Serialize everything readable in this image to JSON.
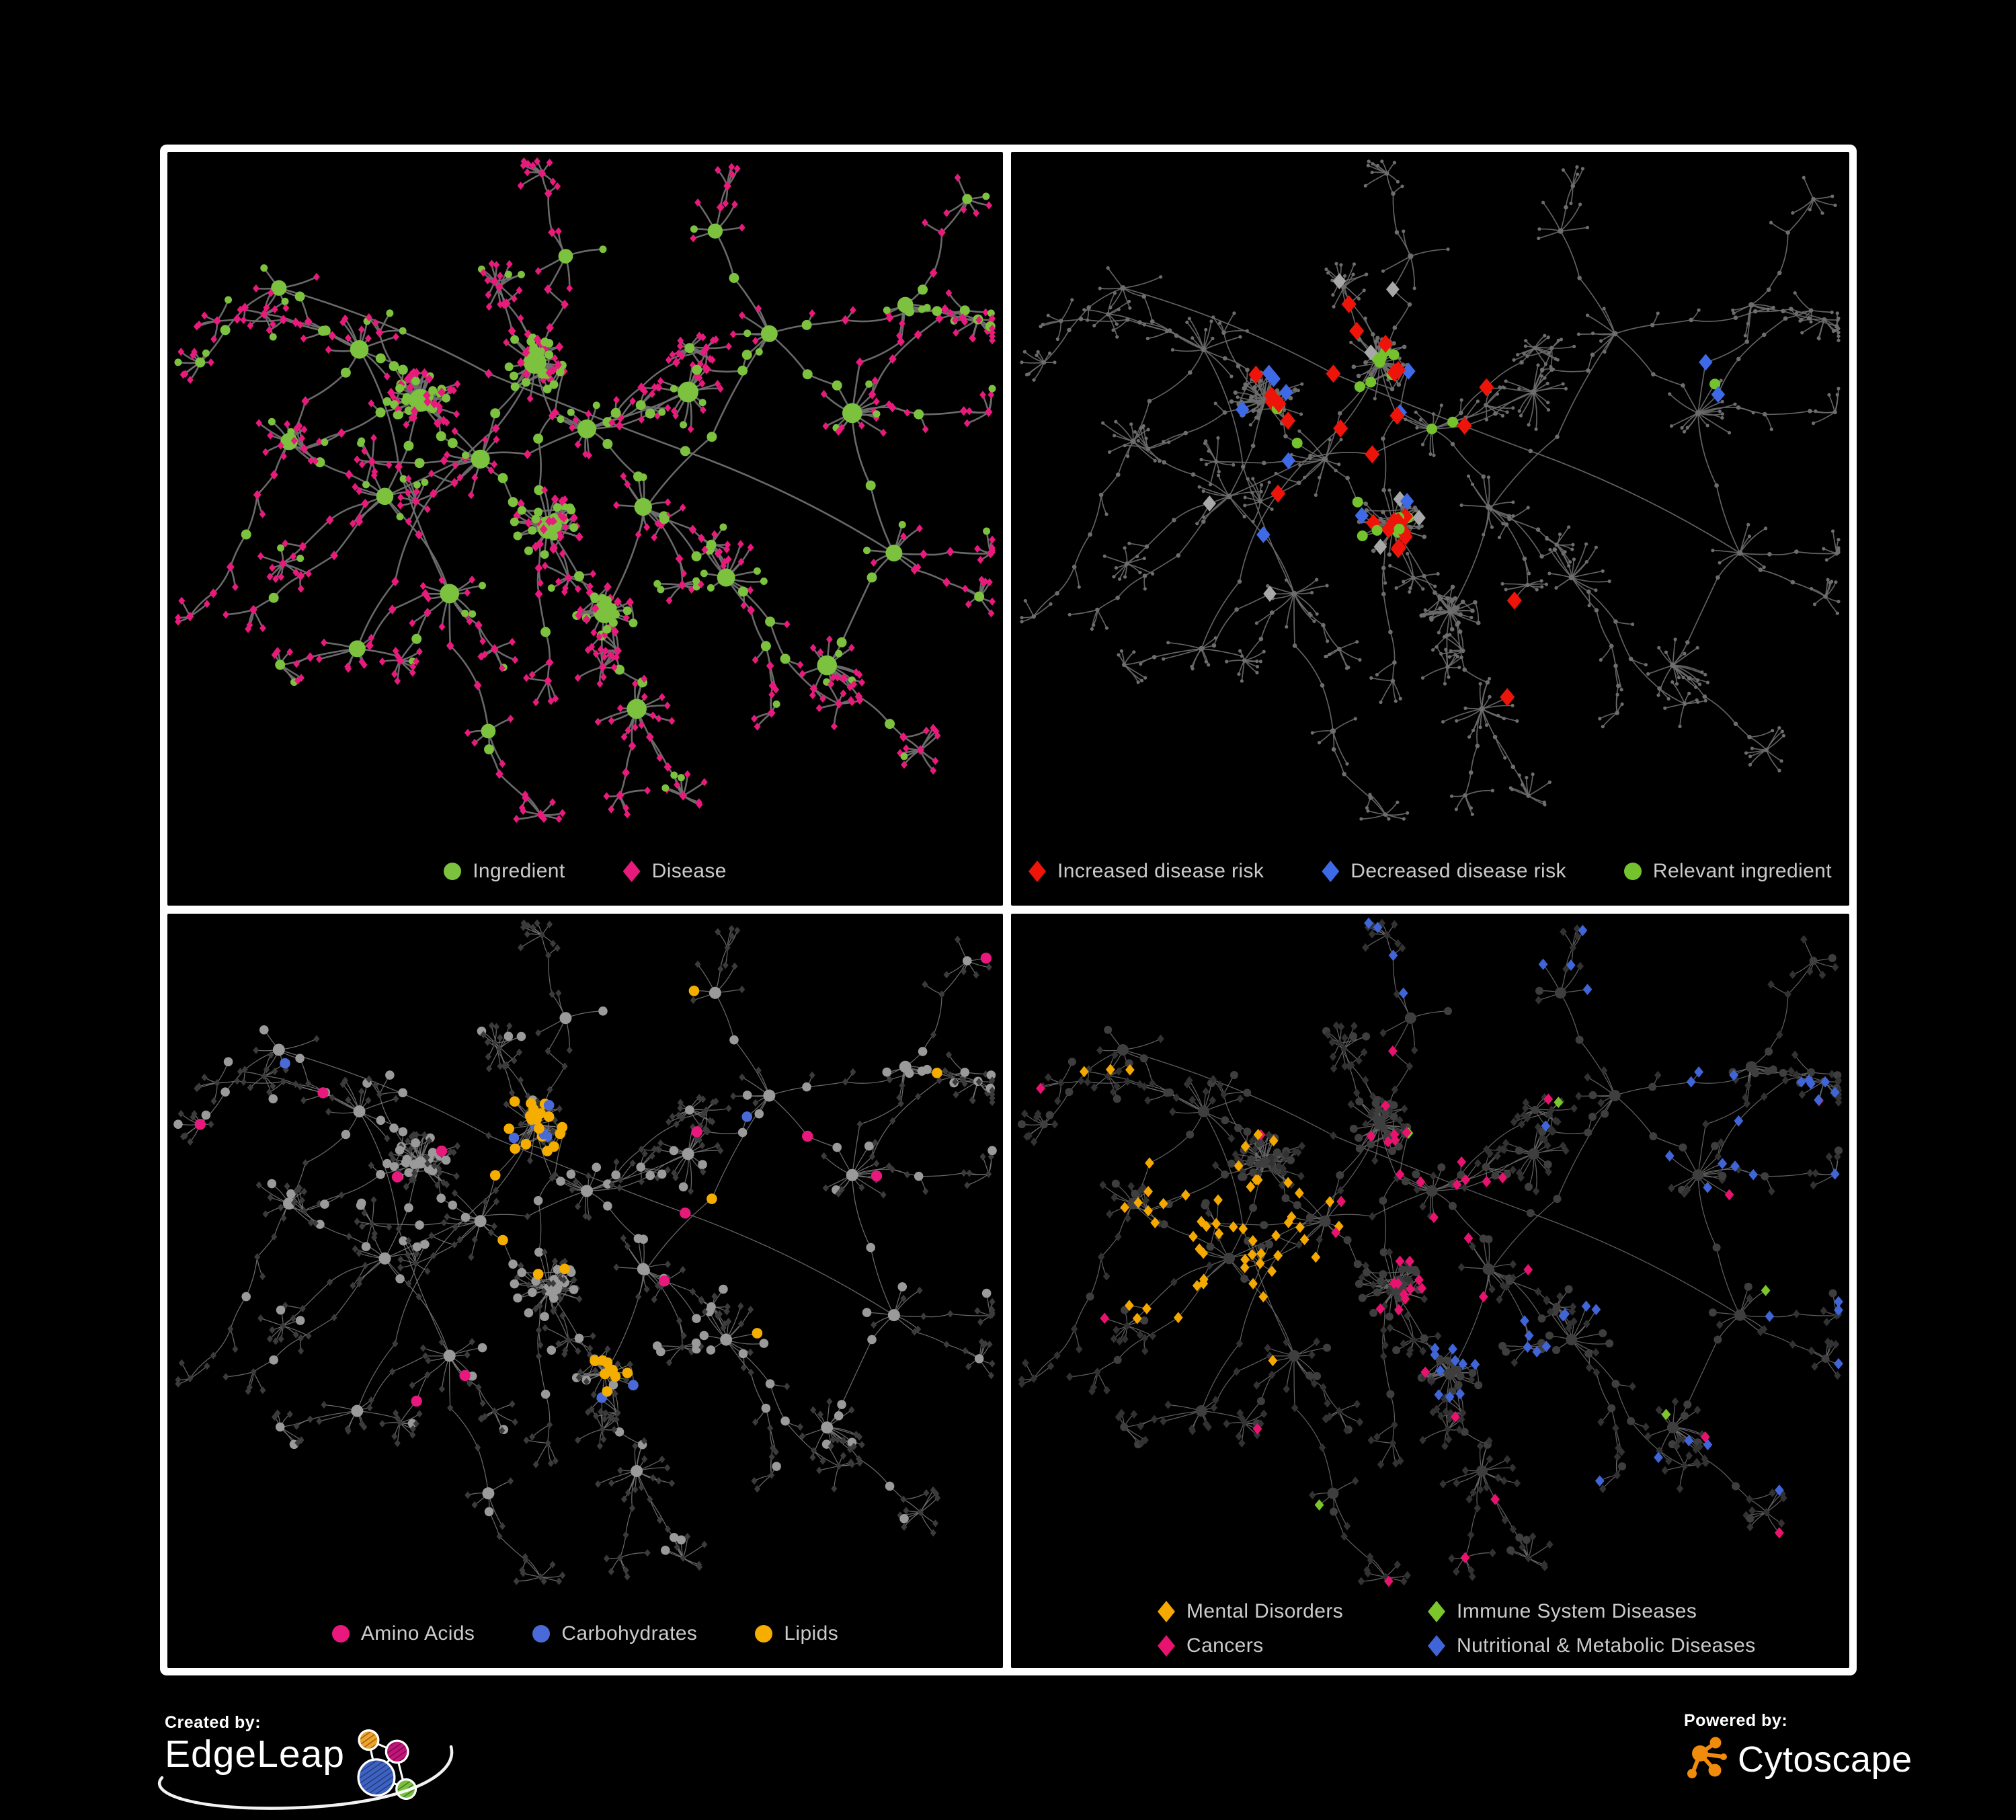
{
  "panels": [
    {
      "id": "ingredient-disease-network",
      "legend": [
        {
          "label": "Ingredient",
          "shape": "circle",
          "color": "#7cc23e"
        },
        {
          "label": "Disease",
          "shape": "diamond",
          "color": "#e81a7c"
        }
      ],
      "style": {
        "edge": "#6f6f6f",
        "circle": "#7cc23e",
        "diamond": "#e81a7c"
      }
    },
    {
      "id": "disease-risk-network",
      "legend": [
        {
          "label": "Increased disease risk",
          "shape": "diamond",
          "color": "#ee1409"
        },
        {
          "label": "Decreased disease risk",
          "shape": "diamond",
          "color": "#3e6ae8"
        },
        {
          "label": "Relevant ingredient",
          "shape": "circle",
          "color": "#74c32c"
        }
      ],
      "style": {
        "edge": "#6c6c6c",
        "base": "#6d6d6d",
        "red": "#ee1409",
        "blue": "#3e6ae8",
        "silver": "#a8a8a8",
        "green": "#74c32c"
      }
    },
    {
      "id": "nutrient-group-network",
      "legend": [
        {
          "label": "Amino Acids",
          "shape": "circle",
          "color": "#e8187c"
        },
        {
          "label": "Carbohydrates",
          "shape": "circle",
          "color": "#4a6ad8"
        },
        {
          "label": "Lipids",
          "shape": "circle",
          "color": "#f5ad00"
        }
      ],
      "style": {
        "edge": "#7b7b7b",
        "circle": "#9a9a9a",
        "diamond": "#3b3b3b",
        "pink": "#e8187c",
        "blue": "#4a6ad8",
        "yellow": "#f5ad00"
      }
    },
    {
      "id": "disease-category-network",
      "legend": [
        {
          "label": "Mental Disorders",
          "shape": "diamond",
          "color": "#f5a800"
        },
        {
          "label": "Immune System Diseases",
          "shape": "diamond",
          "color": "#7cc62c"
        },
        {
          "label": "Cancers",
          "shape": "diamond",
          "color": "#e8136f"
        },
        {
          "label": "Nutritional & Metabolic Diseases",
          "shape": "diamond",
          "color": "#4065d8"
        }
      ],
      "style": {
        "edge": "#696969",
        "circle": "#3e3e3e",
        "diamond": "#323232",
        "orange": "#f5a800",
        "green": "#7cc62c",
        "pink": "#e8136f",
        "blue": "#4065d8"
      }
    }
  ],
  "footer": {
    "created_by_label": "Created by:",
    "created_by_brand": "EdgeLeap",
    "powered_by_label": "Powered by:",
    "powered_by_brand": "Cytoscape",
    "edgeleap_logo_colors": [
      "#f0a32a",
      "#c2147a",
      "#3e62c4",
      "#78c13f"
    ],
    "cytoscape_logo_color": "#f08b0b"
  }
}
